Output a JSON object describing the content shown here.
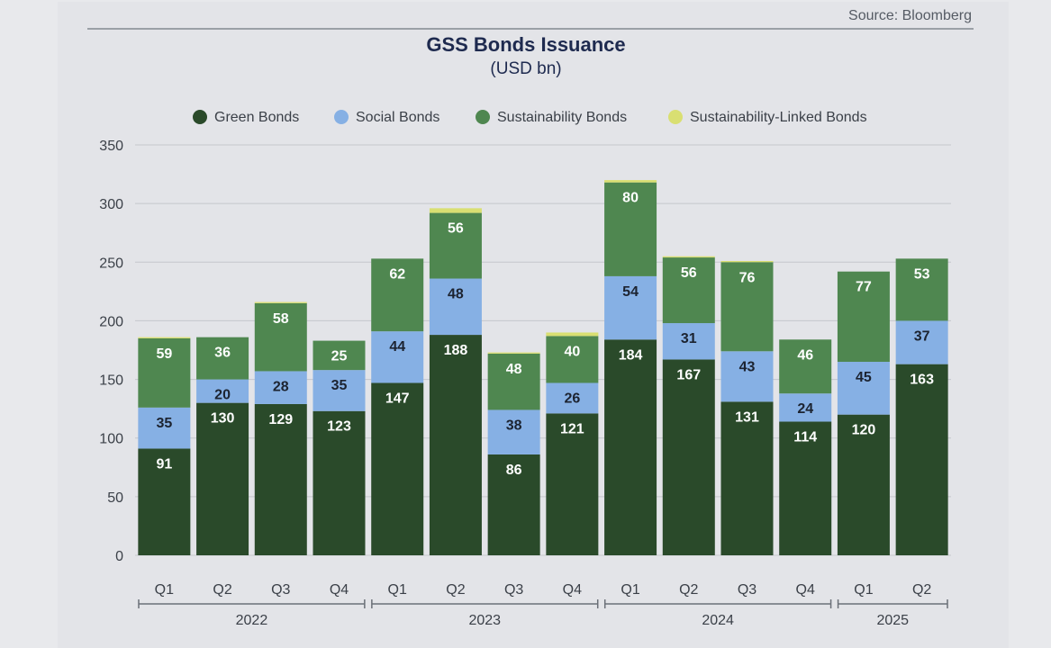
{
  "source": "Source: Bloomberg",
  "colors": {
    "Green Bonds": "#2a4a2a",
    "Social Bonds": "#86b0e4",
    "Sustainability Bonds": "#4f8750",
    "Sustainability-Linked Bonds": "#d9df72"
  },
  "chart_data": {
    "type": "bar",
    "stacked": true,
    "title": "GSS Bonds Issuance",
    "subtitle": "(USD bn)",
    "xlabel": "",
    "ylabel": "",
    "ylim": [
      0,
      350
    ],
    "yticks": [
      0,
      50,
      100,
      150,
      200,
      250,
      300,
      350
    ],
    "grid": true,
    "legend_position": "top",
    "categories": [
      "Q1",
      "Q2",
      "Q3",
      "Q4",
      "Q1",
      "Q2",
      "Q3",
      "Q4",
      "Q1",
      "Q2",
      "Q3",
      "Q4",
      "Q1",
      "Q2"
    ],
    "groups": [
      {
        "label": "2022",
        "start": 0,
        "end": 3
      },
      {
        "label": "2023",
        "start": 4,
        "end": 7
      },
      {
        "label": "2024",
        "start": 8,
        "end": 11
      },
      {
        "label": "2025",
        "start": 12,
        "end": 13
      }
    ],
    "series": [
      {
        "name": "Green Bonds",
        "values": [
          91,
          130,
          129,
          123,
          147,
          188,
          86,
          121,
          184,
          167,
          131,
          114,
          120,
          163
        ]
      },
      {
        "name": "Social Bonds",
        "values": [
          35,
          20,
          28,
          35,
          44,
          48,
          38,
          26,
          54,
          31,
          43,
          24,
          45,
          37
        ]
      },
      {
        "name": "Sustainability Bonds",
        "values": [
          59,
          36,
          58,
          25,
          62,
          56,
          48,
          40,
          80,
          56,
          76,
          46,
          77,
          53
        ]
      },
      {
        "name": "Sustainability-Linked Bonds",
        "values": [
          1,
          0,
          1,
          0,
          0,
          4,
          1,
          3,
          2,
          1,
          1,
          0,
          0,
          0
        ]
      }
    ],
    "label_series": [
      "Green Bonds",
      "Social Bonds",
      "Sustainability Bonds"
    ]
  }
}
